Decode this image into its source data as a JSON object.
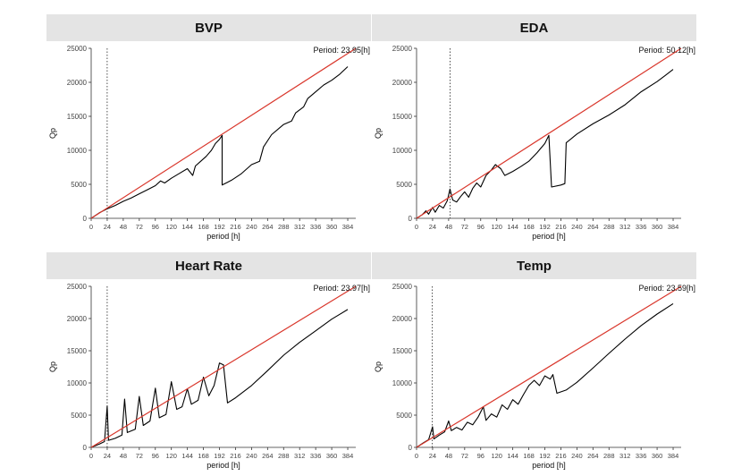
{
  "chart_data": [
    {
      "type": "line",
      "title": "BVP",
      "annotation": "Period: 23.95[h]",
      "xlabel": "period [h]",
      "ylabel": "Qp",
      "xlim": [
        0,
        396
      ],
      "ylim": [
        0,
        25000
      ],
      "xticks": [
        0,
        24,
        48,
        72,
        96,
        120,
        144,
        168,
        192,
        216,
        240,
        264,
        288,
        312,
        336,
        360,
        384
      ],
      "yticks": [
        0,
        5000,
        10000,
        15000,
        20000,
        25000
      ],
      "grid": false,
      "period_marker": 23.95,
      "series": [
        {
          "color": "#000000",
          "points": [
            [
              0,
              0
            ],
            [
              12,
              800
            ],
            [
              24,
              1400
            ],
            [
              36,
              1900
            ],
            [
              48,
              2500
            ],
            [
              60,
              3000
            ],
            [
              72,
              3600
            ],
            [
              84,
              4200
            ],
            [
              96,
              4800
            ],
            [
              104,
              5500
            ],
            [
              110,
              5200
            ],
            [
              120,
              5900
            ],
            [
              132,
              6600
            ],
            [
              144,
              7300
            ],
            [
              152,
              6300
            ],
            [
              156,
              7700
            ],
            [
              164,
              8400
            ],
            [
              172,
              9100
            ],
            [
              180,
              10000
            ],
            [
              186,
              11000
            ],
            [
              192,
              11600
            ],
            [
              196,
              12200
            ],
            [
              196,
              4900
            ],
            [
              210,
              5600
            ],
            [
              224,
              6500
            ],
            [
              240,
              7900
            ],
            [
              252,
              8400
            ],
            [
              258,
              10500
            ],
            [
              270,
              12300
            ],
            [
              288,
              13800
            ],
            [
              300,
              14300
            ],
            [
              306,
              15500
            ],
            [
              318,
              16400
            ],
            [
              324,
              17600
            ],
            [
              336,
              18600
            ],
            [
              348,
              19600
            ],
            [
              360,
              20300
            ],
            [
              372,
              21200
            ],
            [
              384,
              22300
            ]
          ]
        },
        {
          "color": "#d9362b",
          "points": [
            [
              0,
              0
            ],
            [
              396,
              25000
            ]
          ]
        }
      ]
    },
    {
      "type": "line",
      "title": "EDA",
      "annotation": "Period: 50.12[h]",
      "xlabel": "period [h]",
      "ylabel": "Qp",
      "xlim": [
        0,
        396
      ],
      "ylim": [
        0,
        25000
      ],
      "xticks": [
        0,
        24,
        48,
        72,
        96,
        120,
        144,
        168,
        192,
        216,
        240,
        264,
        288,
        312,
        336,
        360,
        384
      ],
      "yticks": [
        0,
        5000,
        10000,
        15000,
        20000,
        25000
      ],
      "grid": false,
      "period_marker": 50.12,
      "series": [
        {
          "color": "#000000",
          "points": [
            [
              0,
              0
            ],
            [
              8,
              500
            ],
            [
              14,
              1100
            ],
            [
              18,
              600
            ],
            [
              24,
              1600
            ],
            [
              28,
              900
            ],
            [
              34,
              1900
            ],
            [
              40,
              1500
            ],
            [
              46,
              2600
            ],
            [
              50,
              4300
            ],
            [
              54,
              2700
            ],
            [
              60,
              2400
            ],
            [
              66,
              3200
            ],
            [
              72,
              3900
            ],
            [
              78,
              3100
            ],
            [
              84,
              4400
            ],
            [
              90,
              5200
            ],
            [
              96,
              4600
            ],
            [
              104,
              6300
            ],
            [
              112,
              7100
            ],
            [
              118,
              7900
            ],
            [
              126,
              7300
            ],
            [
              132,
              6300
            ],
            [
              144,
              6900
            ],
            [
              156,
              7600
            ],
            [
              168,
              8400
            ],
            [
              180,
              9600
            ],
            [
              192,
              11000
            ],
            [
              198,
              12200
            ],
            [
              202,
              4600
            ],
            [
              216,
              4900
            ],
            [
              222,
              5100
            ],
            [
              224,
              11100
            ],
            [
              240,
              12400
            ],
            [
              264,
              13900
            ],
            [
              288,
              15200
            ],
            [
              312,
              16700
            ],
            [
              336,
              18600
            ],
            [
              360,
              20100
            ],
            [
              372,
              21000
            ],
            [
              384,
              21900
            ]
          ]
        },
        {
          "color": "#d9362b",
          "points": [
            [
              0,
              0
            ],
            [
              396,
              25000
            ]
          ]
        }
      ]
    },
    {
      "type": "line",
      "title": "Heart Rate",
      "annotation": "Period: 23.97[h]",
      "xlabel": "period [h]",
      "ylabel": "Qp",
      "xlim": [
        0,
        396
      ],
      "ylim": [
        0,
        25000
      ],
      "xticks": [
        0,
        24,
        48,
        72,
        96,
        120,
        144,
        168,
        192,
        216,
        240,
        264,
        288,
        312,
        336,
        360,
        384
      ],
      "yticks": [
        0,
        5000,
        10000,
        15000,
        20000,
        25000
      ],
      "grid": false,
      "period_marker": 23.97,
      "series": [
        {
          "color": "#000000",
          "points": [
            [
              0,
              0
            ],
            [
              12,
              500
            ],
            [
              20,
              900
            ],
            [
              24,
              6400
            ],
            [
              26,
              1100
            ],
            [
              36,
              1400
            ],
            [
              46,
              1900
            ],
            [
              50,
              7500
            ],
            [
              54,
              2300
            ],
            [
              66,
              2800
            ],
            [
              72,
              7900
            ],
            [
              78,
              3400
            ],
            [
              88,
              4100
            ],
            [
              96,
              9200
            ],
            [
              102,
              4600
            ],
            [
              112,
              5100
            ],
            [
              120,
              10200
            ],
            [
              128,
              5900
            ],
            [
              136,
              6300
            ],
            [
              144,
              9100
            ],
            [
              150,
              6700
            ],
            [
              160,
              7300
            ],
            [
              168,
              10900
            ],
            [
              176,
              8000
            ],
            [
              184,
              9600
            ],
            [
              192,
              13100
            ],
            [
              198,
              12800
            ],
            [
              204,
              6900
            ],
            [
              216,
              7700
            ],
            [
              240,
              9600
            ],
            [
              264,
              11900
            ],
            [
              288,
              14300
            ],
            [
              312,
              16300
            ],
            [
              336,
              18100
            ],
            [
              360,
              19900
            ],
            [
              384,
              21400
            ]
          ]
        },
        {
          "color": "#d9362b",
          "points": [
            [
              0,
              0
            ],
            [
              396,
              25000
            ]
          ]
        }
      ]
    },
    {
      "type": "line",
      "title": "Temp",
      "annotation": "Period: 23.59[h]",
      "xlabel": "period [h]",
      "ylabel": "Qp",
      "xlim": [
        0,
        396
      ],
      "ylim": [
        0,
        25000
      ],
      "xticks": [
        0,
        24,
        48,
        72,
        96,
        120,
        144,
        168,
        192,
        216,
        240,
        264,
        288,
        312,
        336,
        360,
        384
      ],
      "yticks": [
        0,
        5000,
        10000,
        15000,
        20000,
        25000
      ],
      "grid": false,
      "period_marker": 23.59,
      "series": [
        {
          "color": "#000000",
          "points": [
            [
              0,
              0
            ],
            [
              10,
              700
            ],
            [
              18,
              1200
            ],
            [
              24,
              3200
            ],
            [
              26,
              1300
            ],
            [
              34,
              1900
            ],
            [
              42,
              2400
            ],
            [
              48,
              4100
            ],
            [
              52,
              2600
            ],
            [
              60,
              3100
            ],
            [
              68,
              2700
            ],
            [
              76,
              3900
            ],
            [
              84,
              3500
            ],
            [
              92,
              4700
            ],
            [
              100,
              6300
            ],
            [
              104,
              4200
            ],
            [
              112,
              5200
            ],
            [
              120,
              4700
            ],
            [
              128,
              6600
            ],
            [
              136,
              5900
            ],
            [
              144,
              7400
            ],
            [
              152,
              6700
            ],
            [
              160,
              8200
            ],
            [
              168,
              9600
            ],
            [
              176,
              10400
            ],
            [
              184,
              9600
            ],
            [
              192,
              11100
            ],
            [
              200,
              10600
            ],
            [
              204,
              11300
            ],
            [
              210,
              8400
            ],
            [
              224,
              8900
            ],
            [
              240,
              10100
            ],
            [
              264,
              12300
            ],
            [
              288,
              14600
            ],
            [
              312,
              16800
            ],
            [
              336,
              18900
            ],
            [
              360,
              20700
            ],
            [
              384,
              22300
            ]
          ]
        },
        {
          "color": "#d9362b",
          "points": [
            [
              0,
              0
            ],
            [
              396,
              25000
            ]
          ]
        }
      ]
    }
  ]
}
